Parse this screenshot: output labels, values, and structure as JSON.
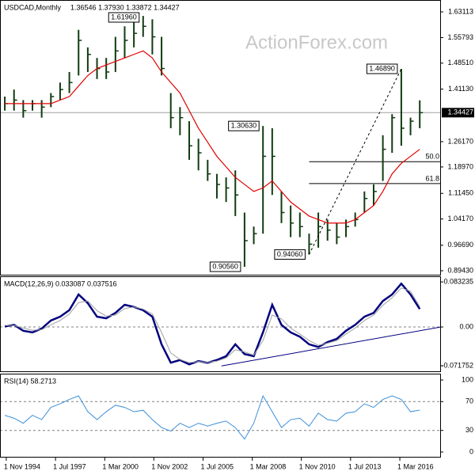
{
  "chart_data": [
    {
      "type": "ohlc",
      "title": "USDCAD,Monthly",
      "header_values": "1.36546 1.37930 1.33872 1.34427",
      "watermark": "ActionForex.com",
      "x": [
        1994.75,
        1995.25,
        1995.75,
        1996.25,
        1996.75,
        1997.25,
        1997.75,
        1998.25,
        1998.75,
        1999.25,
        1999.75,
        2000.25,
        2000.75,
        2001.25,
        2001.75,
        2002.25,
        2002.75,
        2003.25,
        2003.75,
        2004.25,
        2004.75,
        2005.25,
        2005.75,
        2006.25,
        2006.75,
        2007.25,
        2007.75,
        2008.25,
        2008.75,
        2009.25,
        2009.75,
        2010.25,
        2010.75,
        2011.25,
        2011.75,
        2012.25,
        2012.75,
        2013.25,
        2013.75,
        2014.25,
        2014.75,
        2015.25,
        2015.75,
        2016.25,
        2016.75,
        2017.25
      ],
      "high": [
        1.39,
        1.41,
        1.38,
        1.38,
        1.38,
        1.4,
        1.43,
        1.46,
        1.58,
        1.53,
        1.5,
        1.5,
        1.56,
        1.59,
        1.61,
        1.6196,
        1.61,
        1.56,
        1.4,
        1.36,
        1.32,
        1.27,
        1.21,
        1.17,
        1.16,
        1.18,
        1.06,
        1.02,
        1.3063,
        1.3,
        1.12,
        1.08,
        1.06,
        1.0,
        1.06,
        1.04,
        1.03,
        1.04,
        1.06,
        1.12,
        1.14,
        1.28,
        1.34,
        1.4689,
        1.33,
        1.3793
      ],
      "low": [
        1.35,
        1.35,
        1.33,
        1.35,
        1.33,
        1.36,
        1.38,
        1.4,
        1.45,
        1.46,
        1.44,
        1.44,
        1.46,
        1.5,
        1.53,
        1.56,
        1.51,
        1.45,
        1.3,
        1.28,
        1.21,
        1.18,
        1.15,
        1.1,
        1.09,
        1.05,
        0.9056,
        0.97,
        1.0,
        1.11,
        1.03,
        0.99,
        0.99,
        0.9406,
        0.96,
        0.98,
        0.97,
        0.99,
        1.02,
        1.06,
        1.08,
        1.15,
        1.23,
        1.25,
        1.28,
        1.3
      ],
      "close": [
        1.37,
        1.38,
        1.35,
        1.37,
        1.36,
        1.39,
        1.41,
        1.43,
        1.55,
        1.51,
        1.47,
        1.46,
        1.52,
        1.55,
        1.57,
        1.59,
        1.56,
        1.47,
        1.33,
        1.33,
        1.25,
        1.23,
        1.17,
        1.14,
        1.13,
        1.11,
        0.98,
        1.0,
        1.22,
        1.22,
        1.06,
        1.03,
        1.02,
        0.97,
        1.02,
        1.01,
        0.99,
        1.02,
        1.04,
        1.1,
        1.12,
        1.24,
        1.33,
        1.3,
        1.32,
        1.34427
      ],
      "color": "#103c10",
      "ma": {
        "color": "#e00000",
        "values": [
          1.37,
          1.37,
          1.37,
          1.37,
          1.37,
          1.37,
          1.38,
          1.39,
          1.42,
          1.45,
          1.47,
          1.48,
          1.49,
          1.5,
          1.51,
          1.52,
          1.5,
          1.46,
          1.43,
          1.4,
          1.35,
          1.3,
          1.26,
          1.22,
          1.19,
          1.16,
          1.14,
          1.12,
          1.13,
          1.15,
          1.12,
          1.09,
          1.07,
          1.05,
          1.04,
          1.03,
          1.03,
          1.03,
          1.04,
          1.06,
          1.08,
          1.12,
          1.17,
          1.2,
          1.22,
          1.24
        ]
      },
      "last_price": 1.34427,
      "xlim": [
        1994.49,
        2018.4
      ],
      "ylim": [
        0.8808,
        1.6649
      ],
      "yticks": [
        1.63113,
        1.55793,
        {
          "value": 1.4851,
          "label": "1.48510"
        },
        {
          "value": 1.4113,
          "label": "1.41130"
        },
        {
          "value": 1.2617,
          "label": "1.26170"
        },
        {
          "value": 1.1897,
          "label": "1.18970"
        },
        {
          "value": 1.1145,
          "label": "1.11450"
        },
        {
          "value": 1.0417,
          "label": "1.04170"
        },
        {
          "value": 0.9669,
          "label": "0.96690"
        },
        {
          "value": 0.8943,
          "label": "0.89430"
        }
      ],
      "annotations": [
        {
          "x": 2002.25,
          "value": 1.6196,
          "label": "1.61960"
        },
        {
          "x": 2008.75,
          "value": 1.3063,
          "label": "1.30630"
        },
        {
          "x": 2007.75,
          "value": 0.9056,
          "label": "0.90560"
        },
        {
          "x": 2011.25,
          "value": 0.9406,
          "label": "0.94060"
        },
        {
          "x": 2016.25,
          "value": 1.4689,
          "label": "1.46890"
        }
      ],
      "trend_line": {
        "x": [
          2011.25,
          2016.25
        ],
        "y": [
          0.9406,
          1.4689
        ]
      },
      "fib_start": 2011.25,
      "fib_levels": [
        {
          "value": 1.20475,
          "label": "50.0"
        },
        {
          "value": 1.1424,
          "label": "61.8"
        }
      ],
      "grid": false
    },
    {
      "type": "line",
      "title": "MACD(12,26,9) 0.033087 0.037516",
      "x": [
        1994.75,
        1995.25,
        1995.75,
        1996.25,
        1996.75,
        1997.25,
        1997.75,
        1998.25,
        1998.75,
        1999.25,
        1999.75,
        2000.25,
        2000.75,
        2001.25,
        2001.75,
        2002.25,
        2002.75,
        2003.25,
        2003.75,
        2004.25,
        2004.75,
        2005.25,
        2005.75,
        2006.25,
        2006.75,
        2007.25,
        2007.75,
        2008.25,
        2008.75,
        2009.25,
        2009.75,
        2010.25,
        2010.75,
        2011.25,
        2011.75,
        2012.25,
        2012.75,
        2013.25,
        2013.75,
        2014.25,
        2014.75,
        2015.25,
        2015.75,
        2016.25,
        2016.75,
        2017.25
      ],
      "series": [
        {
          "color": "#00007f",
          "width": 2.5,
          "values": [
            0.001,
            0.004,
            -0.007,
            -0.01,
            -0.003,
            0.012,
            0.019,
            0.031,
            0.06,
            0.044,
            0.019,
            0.016,
            0.026,
            0.041,
            0.037,
            0.031,
            0.019,
            -0.032,
            -0.066,
            -0.061,
            -0.069,
            -0.063,
            -0.066,
            -0.061,
            -0.054,
            -0.032,
            -0.05,
            -0.054,
            -0.01,
            0.041,
            0.004,
            -0.01,
            -0.018,
            -0.032,
            -0.037,
            -0.028,
            -0.022,
            -0.007,
            0.004,
            0.019,
            0.026,
            0.048,
            0.06,
            0.08,
            0.06,
            0.033087
          ]
        },
        {
          "color": "#a0a0a0",
          "width": 1,
          "values": [
            0.003,
            0.003,
            -0.002,
            -0.006,
            -0.005,
            0.004,
            0.012,
            0.024,
            0.045,
            0.048,
            0.03,
            0.02,
            0.022,
            0.034,
            0.037,
            0.033,
            0.024,
            -0.01,
            -0.048,
            -0.06,
            -0.066,
            -0.064,
            -0.065,
            -0.063,
            -0.057,
            -0.042,
            -0.046,
            -0.052,
            -0.025,
            0.022,
            0.015,
            -0.002,
            -0.013,
            -0.025,
            -0.034,
            -0.03,
            -0.025,
            -0.013,
            -0.002,
            0.012,
            0.022,
            0.04,
            0.054,
            0.072,
            0.066,
            0.037516
          ]
        }
      ],
      "xlim": [
        1994.49,
        2018.4
      ],
      "ylim": [
        -0.0833,
        0.0936
      ],
      "yticks": [
        0.083235,
        {
          "value": 0,
          "label": "0.00"
        },
        -0.071752
      ],
      "reference_lines": [
        0
      ],
      "trend_line": {
        "x": [
          2006.5,
          2018.4
        ],
        "y": [
          -0.072,
          0.0
        ]
      },
      "grid": false
    },
    {
      "type": "line",
      "title": "RSI(14) 58.2713",
      "x": [
        1994.75,
        1995.25,
        1995.75,
        1996.25,
        1996.75,
        1997.25,
        1997.75,
        1998.25,
        1998.75,
        1999.25,
        1999.75,
        2000.25,
        2000.75,
        2001.25,
        2001.75,
        2002.25,
        2002.75,
        2003.25,
        2003.75,
        2004.25,
        2004.75,
        2005.25,
        2005.75,
        2006.25,
        2006.75,
        2007.25,
        2007.75,
        2008.25,
        2008.75,
        2009.25,
        2009.75,
        2010.25,
        2010.75,
        2011.25,
        2011.75,
        2012.25,
        2012.75,
        2013.25,
        2013.75,
        2014.25,
        2014.75,
        2015.25,
        2015.75,
        2016.25,
        2016.75,
        2017.25
      ],
      "series": [
        {
          "color": "#3c8fd8",
          "width": 1,
          "values": [
            51,
            47,
            40,
            51,
            45,
            62,
            67,
            73,
            78,
            56,
            45,
            56,
            65,
            62,
            56,
            58,
            45,
            34,
            29,
            40,
            34,
            40,
            36,
            40,
            43,
            34,
            18,
            40,
            78,
            56,
            34,
            45,
            47,
            36,
            54,
            45,
            43,
            54,
            56,
            67,
            62,
            73,
            78,
            73,
            56,
            58.2713
          ]
        }
      ],
      "xlim": [
        1994.49,
        2018.4
      ],
      "ylim": [
        -7.7,
        108.8
      ],
      "yticks": [
        100,
        70,
        30,
        0
      ],
      "reference_lines": [
        70,
        30
      ],
      "xticks": [
        {
          "value": 1994.83,
          "label": "1 Nov 1994"
        },
        {
          "value": 1997.5,
          "label": "1 Jul 1997"
        },
        {
          "value": 2000.17,
          "label": "1 Mar 2000"
        },
        {
          "value": 2002.83,
          "label": "1 Nov 2002"
        },
        {
          "value": 2005.5,
          "label": "1 Jul 2005"
        },
        {
          "value": 2008.17,
          "label": "1 Mar 2008"
        },
        {
          "value": 2010.83,
          "label": "1 Nov 2010"
        },
        {
          "value": 2013.5,
          "label": "1 Jul 2013"
        },
        {
          "value": 2016.17,
          "label": "1 Mar 2016"
        }
      ],
      "grid": false
    }
  ]
}
